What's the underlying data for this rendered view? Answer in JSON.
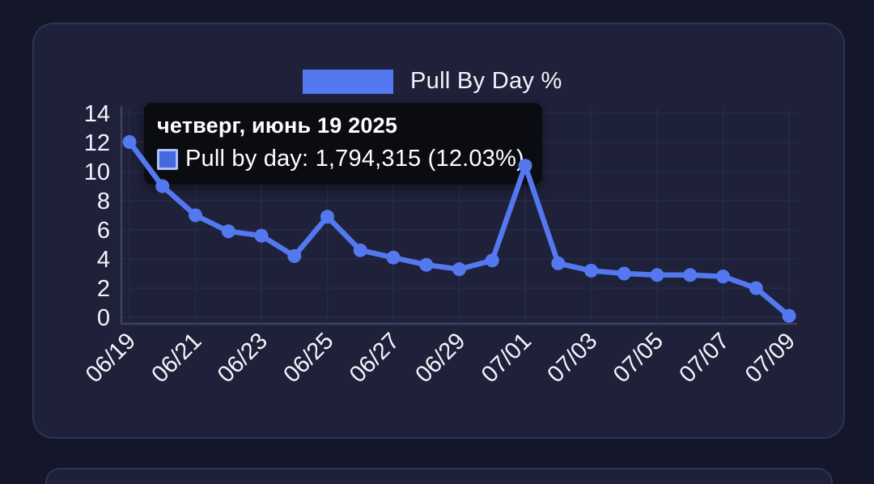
{
  "page": {
    "background": "#14162a",
    "card_background": "#1e2139",
    "card_border": "#2e3357"
  },
  "legend": {
    "label": "Pull By Day %",
    "swatch_color": "#5478f0"
  },
  "tooltip": {
    "title": "четверг, июнь 19 2025",
    "label": "Pull by day: 1,794,315 (12.03%)",
    "background": "#0b0c12",
    "marker_fill": "#4668e0",
    "marker_border": "#aebffa"
  },
  "chart_data": {
    "type": "line",
    "title": "Pull By Day %",
    "series_name": "Pull by day",
    "x": [
      "06/19",
      "06/20",
      "06/21",
      "06/22",
      "06/23",
      "06/24",
      "06/25",
      "06/26",
      "06/27",
      "06/28",
      "06/29",
      "06/30",
      "07/01",
      "07/02",
      "07/03",
      "07/04",
      "07/05",
      "07/06",
      "07/07",
      "07/08",
      "07/09"
    ],
    "values": [
      12.03,
      9.0,
      7.0,
      5.9,
      5.6,
      4.2,
      6.9,
      4.6,
      4.1,
      3.6,
      3.3,
      3.9,
      10.4,
      3.7,
      3.2,
      3.0,
      2.9,
      2.9,
      2.8,
      2.0,
      0.1
    ],
    "x_tick_labels": [
      "06/19",
      "06/21",
      "06/23",
      "06/25",
      "06/27",
      "06/29",
      "07/01",
      "07/03",
      "07/05",
      "07/07",
      "07/09"
    ],
    "x_tick_step": 2,
    "x_label_rotation": -45,
    "ylim": [
      0,
      14
    ],
    "yticks": [
      0,
      2,
      4,
      6,
      8,
      10,
      12,
      14
    ],
    "grid": true,
    "legend_position": "top",
    "line_color": "#5478f0",
    "point_color": "#5478f0",
    "grid_color": "#272b48",
    "axis_color": "#3d4266",
    "text_color": "#f4f5fa",
    "highlighted_point": {
      "x": "06/19",
      "value_text": "1,794,315",
      "percent_text": "12.03%"
    }
  }
}
